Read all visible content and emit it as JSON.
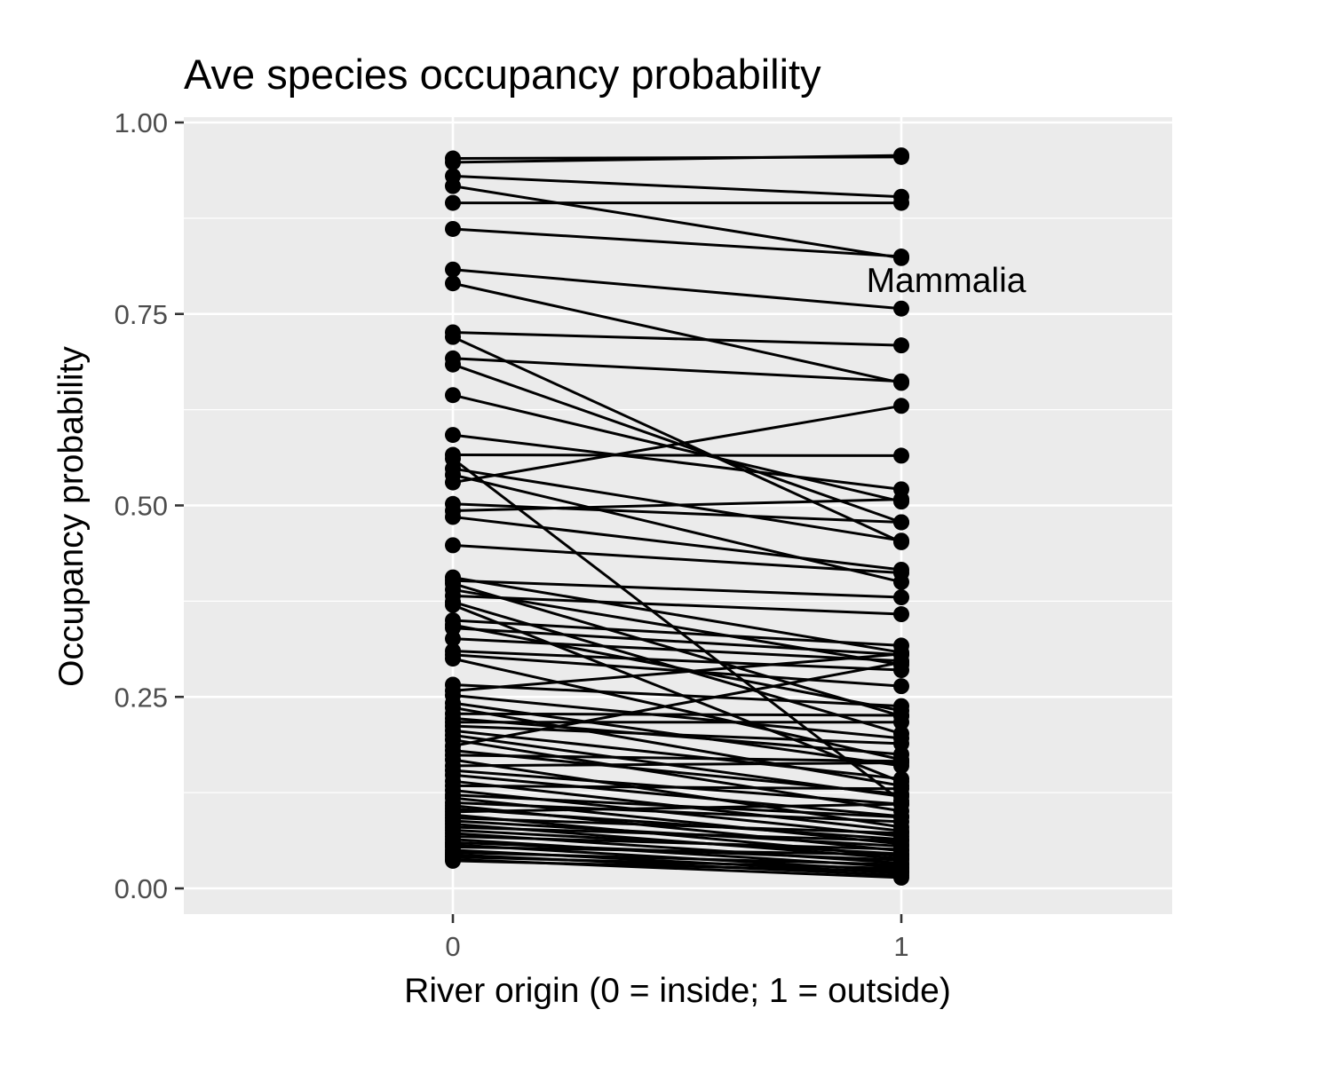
{
  "chart_data": {
    "type": "line",
    "title": "Ave species occupancy probability",
    "xlabel": "River origin (0 = inside; 1 = outside)",
    "ylabel": "Occupancy probability",
    "x": [
      0,
      1
    ],
    "x_tick_labels": [
      "0",
      "1"
    ],
    "y_ticks": [
      "0.00",
      "0.25",
      "0.50",
      "0.75",
      "1.00"
    ],
    "ylim": [
      0,
      1
    ],
    "grid": true,
    "legend": "none",
    "annotations": [
      {
        "text": "Mammalia",
        "x": 1.1,
        "y": 0.795
      }
    ],
    "pairs": [
      [
        0.953,
        0.955
      ],
      [
        0.948,
        0.957
      ],
      [
        0.93,
        0.903
      ],
      [
        0.917,
        0.823
      ],
      [
        0.895,
        0.895
      ],
      [
        0.861,
        0.825
      ],
      [
        0.808,
        0.757
      ],
      [
        0.79,
        0.66
      ],
      [
        0.726,
        0.709
      ],
      [
        0.72,
        0.452
      ],
      [
        0.692,
        0.662
      ],
      [
        0.684,
        0.478
      ],
      [
        0.644,
        0.505
      ],
      [
        0.592,
        0.521
      ],
      [
        0.566,
        0.565
      ],
      [
        0.561,
        0.114
      ],
      [
        0.548,
        0.454
      ],
      [
        0.54,
        0.4
      ],
      [
        0.53,
        0.63
      ],
      [
        0.502,
        0.478
      ],
      [
        0.493,
        0.508
      ],
      [
        0.485,
        0.416
      ],
      [
        0.448,
        0.412
      ],
      [
        0.406,
        0.308
      ],
      [
        0.402,
        0.38
      ],
      [
        0.398,
        0.225
      ],
      [
        0.39,
        0.292
      ],
      [
        0.382,
        0.358
      ],
      [
        0.374,
        0.202
      ],
      [
        0.37,
        0.139
      ],
      [
        0.35,
        0.317
      ],
      [
        0.344,
        0.232
      ],
      [
        0.34,
        0.305
      ],
      [
        0.326,
        0.297
      ],
      [
        0.31,
        0.285
      ],
      [
        0.305,
        0.264
      ],
      [
        0.3,
        0.168
      ],
      [
        0.266,
        0.238
      ],
      [
        0.258,
        0.306
      ],
      [
        0.252,
        0.196
      ],
      [
        0.242,
        0.16
      ],
      [
        0.236,
        0.134
      ],
      [
        0.228,
        0.226
      ],
      [
        0.222,
        0.175
      ],
      [
        0.217,
        0.217
      ],
      [
        0.212,
        0.189
      ],
      [
        0.206,
        0.143
      ],
      [
        0.2,
        0.12
      ],
      [
        0.194,
        0.101
      ],
      [
        0.186,
        0.295
      ],
      [
        0.18,
        0.123
      ],
      [
        0.174,
        0.166
      ],
      [
        0.168,
        0.08
      ],
      [
        0.16,
        0.164
      ],
      [
        0.154,
        0.11
      ],
      [
        0.148,
        0.094
      ],
      [
        0.14,
        0.075
      ],
      [
        0.134,
        0.13
      ],
      [
        0.128,
        0.068
      ],
      [
        0.122,
        0.093
      ],
      [
        0.118,
        0.058
      ],
      [
        0.112,
        0.087
      ],
      [
        0.108,
        0.049
      ],
      [
        0.104,
        0.064
      ],
      [
        0.1,
        0.11
      ],
      [
        0.096,
        0.042
      ],
      [
        0.092,
        0.072
      ],
      [
        0.088,
        0.055
      ],
      [
        0.084,
        0.039
      ],
      [
        0.08,
        0.062
      ],
      [
        0.076,
        0.045
      ],
      [
        0.072,
        0.033
      ],
      [
        0.068,
        0.051
      ],
      [
        0.064,
        0.028
      ],
      [
        0.06,
        0.037
      ],
      [
        0.057,
        0.023
      ],
      [
        0.054,
        0.044
      ],
      [
        0.05,
        0.02
      ],
      [
        0.047,
        0.031
      ],
      [
        0.044,
        0.017
      ],
      [
        0.041,
        0.026
      ],
      [
        0.038,
        0.014
      ],
      [
        0.036,
        0.022
      ]
    ]
  }
}
